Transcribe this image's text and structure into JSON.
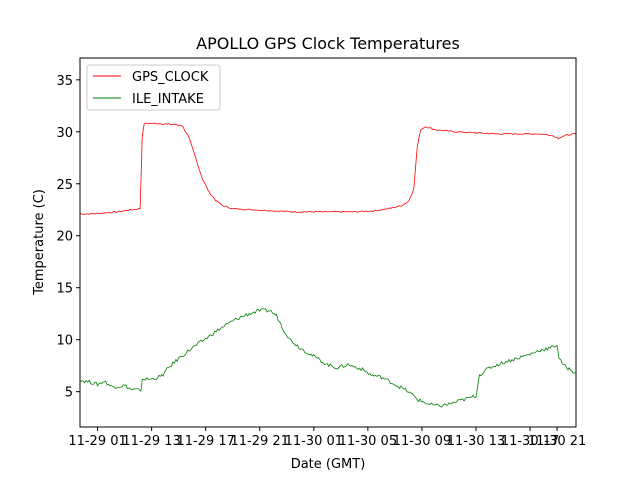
{
  "chart_data": {
    "type": "line",
    "title": "APOLLO GPS Clock Temperatures",
    "xlabel": "Date (GMT)",
    "ylabel": "Temperature (C)",
    "ylim": [
      1.6,
      37.1
    ],
    "xlim_hours": [
      -1.6,
      71.8
    ],
    "x_ticks": [
      {
        "label": "11-29 01",
        "hour": 1
      },
      {
        "label": "11-29 13",
        "hour": 9
      },
      {
        "label": "11-29 17",
        "hour": 17
      },
      {
        "label": "11-29 21",
        "hour": 25
      },
      {
        "label": "11-30 01",
        "hour": 33
      },
      {
        "label": "11-30 05",
        "hour": 41
      },
      {
        "label": "11-30 09",
        "hour": 49
      },
      {
        "label": "11-30 13",
        "hour": 57
      },
      {
        "label": "11-30 17",
        "hour": 65
      },
      {
        "label": "11-30 21",
        "hour": 69
      }
    ],
    "y_ticks": [
      5,
      10,
      15,
      20,
      25,
      30,
      35
    ],
    "legend_position": "top-left",
    "grid": false,
    "series": [
      {
        "name": "GPS_CLOCK",
        "color": "#ff0000",
        "points": [
          [
            -1.6,
            22.1
          ],
          [
            0,
            22.1
          ],
          [
            2,
            22.2
          ],
          [
            4,
            22.3
          ],
          [
            6,
            22.5
          ],
          [
            7.3,
            22.6
          ],
          [
            7.6,
            29.5
          ],
          [
            7.9,
            30.8
          ],
          [
            10,
            30.8
          ],
          [
            12,
            30.7
          ],
          [
            13.5,
            30.6
          ],
          [
            14.5,
            29.5
          ],
          [
            15.5,
            27.5
          ],
          [
            16.5,
            25.5
          ],
          [
            17.5,
            24.2
          ],
          [
            18.5,
            23.4
          ],
          [
            19.5,
            22.9
          ],
          [
            21,
            22.6
          ],
          [
            24,
            22.5
          ],
          [
            27,
            22.4
          ],
          [
            30,
            22.3
          ],
          [
            33,
            22.3
          ],
          [
            36,
            22.3
          ],
          [
            39,
            22.3
          ],
          [
            42,
            22.4
          ],
          [
            44,
            22.6
          ],
          [
            46,
            22.9
          ],
          [
            47,
            23.3
          ],
          [
            47.8,
            24.5
          ],
          [
            48.3,
            28.5
          ],
          [
            48.8,
            30.2
          ],
          [
            49.5,
            30.5
          ],
          [
            51,
            30.2
          ],
          [
            54,
            30.0
          ],
          [
            57,
            29.9
          ],
          [
            60,
            29.8
          ],
          [
            63,
            29.8
          ],
          [
            66,
            29.8
          ],
          [
            68,
            29.7
          ],
          [
            69.2,
            29.4
          ],
          [
            70.5,
            29.7
          ],
          [
            71.8,
            29.8
          ]
        ]
      },
      {
        "name": "ILE_INTAKE",
        "color": "#008000",
        "points": [
          [
            -1.6,
            6.1
          ],
          [
            0,
            5.9
          ],
          [
            1,
            5.7
          ],
          [
            2,
            6.0
          ],
          [
            3,
            5.5
          ],
          [
            4,
            5.5
          ],
          [
            5,
            5.6
          ],
          [
            6,
            5.2
          ],
          [
            7,
            5.2
          ],
          [
            7.4,
            4.9
          ],
          [
            7.6,
            6.2
          ],
          [
            9,
            6.2
          ],
          [
            10.5,
            6.5
          ],
          [
            11.5,
            7.3
          ],
          [
            13,
            8.2
          ],
          [
            15,
            9.2
          ],
          [
            17,
            10.1
          ],
          [
            19,
            11.0
          ],
          [
            21,
            11.8
          ],
          [
            23,
            12.4
          ],
          [
            25,
            12.8
          ],
          [
            26.5,
            12.8
          ],
          [
            27.5,
            12.3
          ],
          [
            28.5,
            11.0
          ],
          [
            29.5,
            10.0
          ],
          [
            31,
            9.2
          ],
          [
            33,
            8.4
          ],
          [
            35,
            7.6
          ],
          [
            36.5,
            7.3
          ],
          [
            38,
            7.6
          ],
          [
            40,
            7.2
          ],
          [
            41.5,
            6.6
          ],
          [
            43,
            6.4
          ],
          [
            45,
            5.7
          ],
          [
            47,
            5.0
          ],
          [
            48.5,
            4.2
          ],
          [
            50,
            3.8
          ],
          [
            51.5,
            3.6
          ],
          [
            53,
            3.8
          ],
          [
            55,
            4.2
          ],
          [
            57,
            4.6
          ],
          [
            57.5,
            6.6
          ],
          [
            59,
            7.3
          ],
          [
            61,
            7.8
          ],
          [
            63,
            8.2
          ],
          [
            65,
            8.6
          ],
          [
            66.5,
            9.0
          ],
          [
            68,
            9.2
          ],
          [
            69,
            9.5
          ],
          [
            69.3,
            8.2
          ],
          [
            70,
            7.5
          ],
          [
            71,
            7.1
          ],
          [
            71.8,
            6.8
          ]
        ]
      }
    ]
  }
}
